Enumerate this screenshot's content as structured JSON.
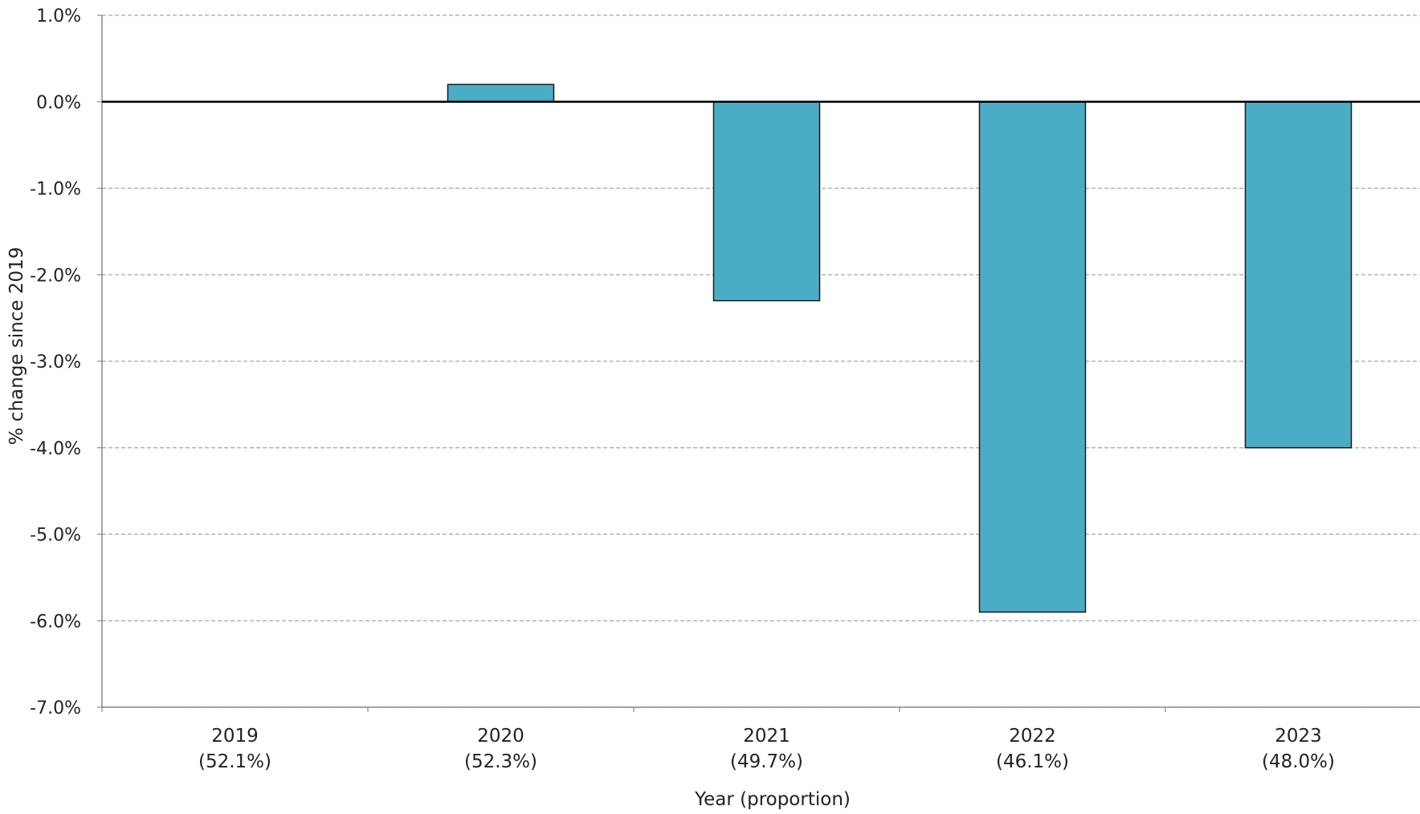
{
  "chart_data": {
    "type": "bar",
    "title": "",
    "xlabel": "Year (proportion)",
    "ylabel": "% change since 2019",
    "categories": [
      "2019",
      "2020",
      "2021",
      "2022",
      "2023"
    ],
    "category_sublabels": [
      "(52.1%)",
      "(52.3%)",
      "(49.7%)",
      "(46.1%)",
      "(48.0%)"
    ],
    "values": [
      0.0,
      0.2,
      -2.3,
      -5.9,
      -4.0
    ],
    "ylim": [
      -7.0,
      1.0
    ],
    "yticks": [
      1.0,
      0.0,
      -1.0,
      -2.0,
      -3.0,
      -4.0,
      -5.0,
      -6.0,
      -7.0
    ],
    "ytick_labels": [
      "1.0%",
      "0.0%",
      "-1.0%",
      "-2.0%",
      "-3.0%",
      "-4.0%",
      "-5.0%",
      "-6.0%",
      "-7.0%"
    ],
    "grid": true,
    "legend": "none",
    "colors": {
      "bar_fill": "#4BACC6",
      "bar_stroke": "#1a1a1a",
      "grid": "#a6a6a6",
      "zero_line": "#000000",
      "axis": "#888888"
    }
  }
}
